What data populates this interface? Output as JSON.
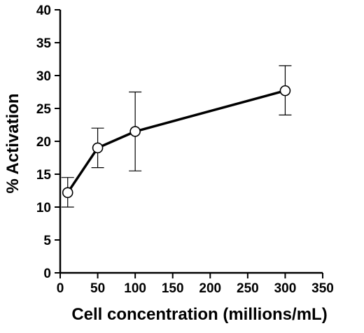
{
  "chart_data": {
    "type": "line",
    "title": "",
    "xlabel": "Cell concentration (millions/mL)",
    "ylabel": "% Activation",
    "xlim": [
      0,
      350
    ],
    "ylim": [
      0,
      40
    ],
    "x_ticks": [
      0,
      50,
      100,
      150,
      200,
      250,
      300,
      350
    ],
    "y_ticks": [
      0,
      5,
      10,
      15,
      20,
      25,
      30,
      35,
      40
    ],
    "grid": false,
    "legend": "none",
    "marker": "open-circle",
    "line_color": "#000000",
    "series": [
      {
        "x": [
          10,
          50,
          100,
          300
        ],
        "y": [
          12.2,
          19.0,
          21.5,
          27.7
        ],
        "error_low": [
          10.0,
          16.0,
          15.5,
          24.0
        ],
        "error_high": [
          14.5,
          22.0,
          27.5,
          31.5
        ]
      }
    ]
  }
}
